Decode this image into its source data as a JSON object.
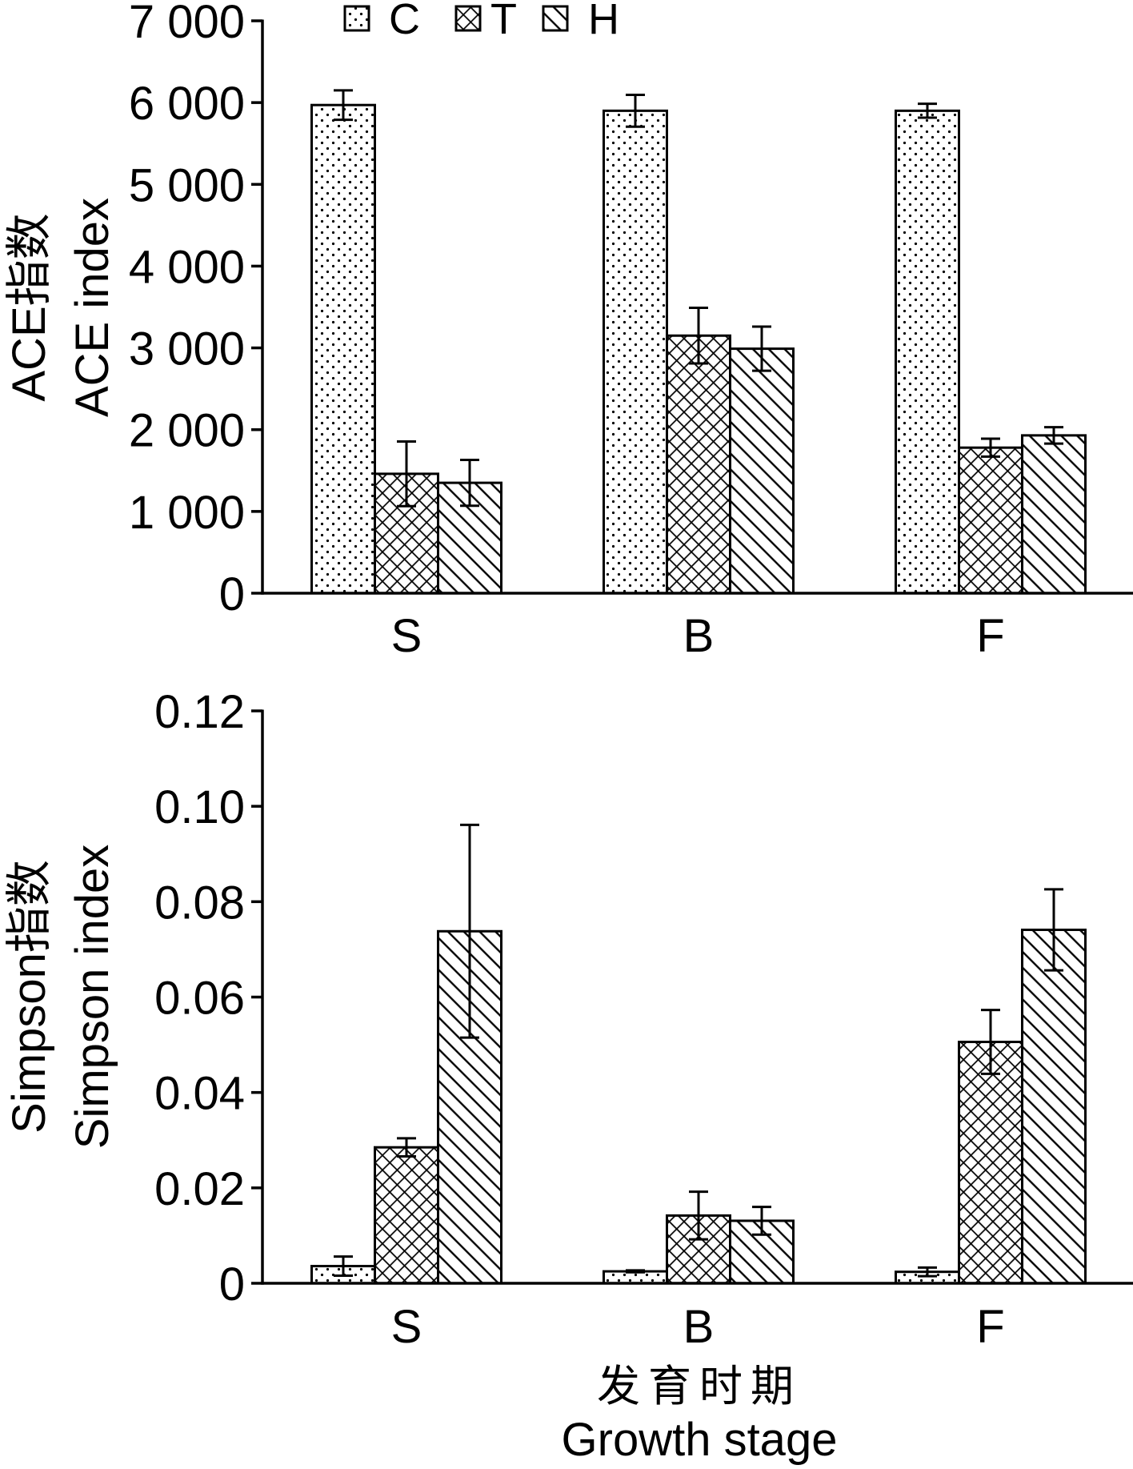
{
  "chart_data": [
    {
      "type": "bar",
      "categories": [
        "S",
        "B",
        "F"
      ],
      "series": [
        {
          "name": "C",
          "values": [
            5970,
            5900,
            5900
          ],
          "errors": [
            180,
            195,
            85
          ]
        },
        {
          "name": "T",
          "values": [
            1460,
            3150,
            1780
          ],
          "errors": [
            395,
            340,
            110
          ]
        },
        {
          "name": "H",
          "values": [
            1350,
            2990,
            1930
          ],
          "errors": [
            280,
            270,
            100
          ]
        }
      ],
      "xlabel": "",
      "ylabel_cn": "ACE指数",
      "ylabel": "ACE index",
      "ylim": [
        0,
        7000
      ],
      "yticks": [
        0,
        1000,
        2000,
        3000,
        4000,
        5000,
        6000,
        7000
      ],
      "ytick_labels": [
        "0",
        "1 000",
        "2 000",
        "3 000",
        "4 000",
        "5 000",
        "6 000",
        "7 000"
      ],
      "legend_position": "top",
      "grid": false
    },
    {
      "type": "bar",
      "categories": [
        "S",
        "B",
        "F"
      ],
      "series": [
        {
          "name": "C",
          "values": [
            0.0036,
            0.0025,
            0.0024
          ],
          "errors": [
            0.002,
            0.0002,
            0.0009
          ]
        },
        {
          "name": "T",
          "values": [
            0.0285,
            0.0142,
            0.0506
          ],
          "errors": [
            0.0019,
            0.005,
            0.0067
          ]
        },
        {
          "name": "H",
          "values": [
            0.0738,
            0.0131,
            0.0741
          ],
          "errors": [
            0.0223,
            0.0029,
            0.0085
          ]
        }
      ],
      "xlabel_cn": "发育时期",
      "xlabel": "Growth stage",
      "ylabel_cn": "Simpson指数",
      "ylabel": "Simpson index",
      "ylim": [
        0,
        0.12
      ],
      "yticks": [
        0,
        0.02,
        0.04,
        0.06,
        0.08,
        0.1,
        0.12
      ],
      "ytick_labels": [
        "0",
        "0.02",
        "0.04",
        "0.06",
        "0.08",
        "0.10",
        "0.12"
      ],
      "grid": false
    }
  ]
}
